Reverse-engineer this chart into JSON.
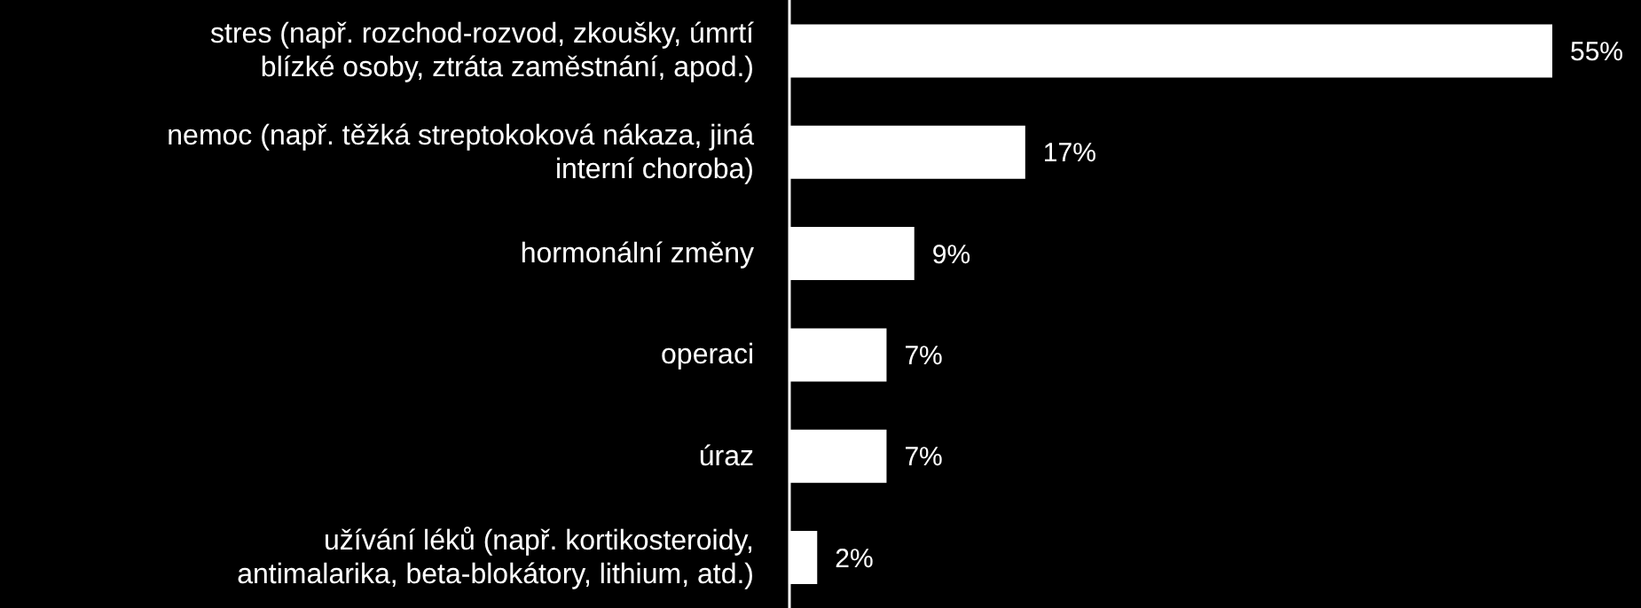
{
  "chart_data": {
    "type": "bar",
    "orientation": "horizontal",
    "categories": [
      "stres (např. rozchod-rozvod, zkoušky, úmrtí blízké osoby, ztráta zaměstnání, apod.)",
      "nemoc (např. těžká streptokoková nákaza, jiná interní choroba)",
      "hormonální změny",
      "operaci",
      "úraz",
      "užívání léků (např. kortikosteroidy, antimalarika, beta-blokátory, lithium, atd.)"
    ],
    "values": [
      55,
      17,
      9,
      7,
      7,
      2
    ],
    "value_labels": [
      "55%",
      "17%",
      "9%",
      "7%",
      "7%",
      "2%"
    ],
    "color": "#ffffff",
    "xlim": [
      0,
      55
    ],
    "tick_labels": "y",
    "grid": false
  }
}
